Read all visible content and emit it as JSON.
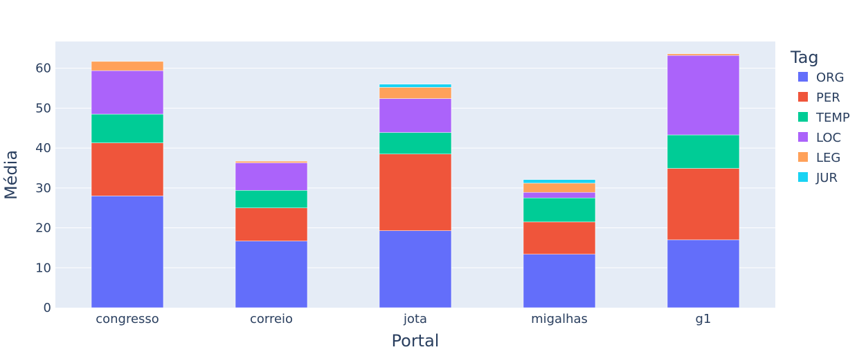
{
  "chart_data": {
    "type": "bar",
    "barmode": "stack",
    "categories": [
      "congresso",
      "correio",
      "jota",
      "migalhas",
      "g1"
    ],
    "series": [
      {
        "name": "ORG",
        "color": "#636efa",
        "values": [
          28.0,
          16.7,
          19.3,
          13.4,
          17.0
        ]
      },
      {
        "name": "PER",
        "color": "#ef553b",
        "values": [
          13.3,
          8.3,
          19.2,
          8.1,
          17.9
        ]
      },
      {
        "name": "TEMP",
        "color": "#00cc96",
        "values": [
          7.2,
          4.4,
          5.4,
          6.0,
          8.4
        ]
      },
      {
        "name": "LOC",
        "color": "#ab63fa",
        "values": [
          10.9,
          6.9,
          8.5,
          1.4,
          19.9
        ]
      },
      {
        "name": "LEG",
        "color": "#ffa15a",
        "values": [
          2.3,
          0.4,
          2.8,
          2.3,
          0.4
        ]
      },
      {
        "name": "JUR",
        "color": "#19d3f3",
        "values": [
          0.0,
          0.0,
          0.8,
          0.9,
          0.0
        ]
      }
    ],
    "xlabel": "Portal",
    "ylabel": "Média",
    "ylim": [
      0,
      66.7
    ],
    "yticks": [
      0,
      10,
      20,
      30,
      40,
      50,
      60
    ],
    "legend_title": "Tag",
    "legend_position": "right",
    "grid": true,
    "plot_background": "#e5ecf6"
  }
}
